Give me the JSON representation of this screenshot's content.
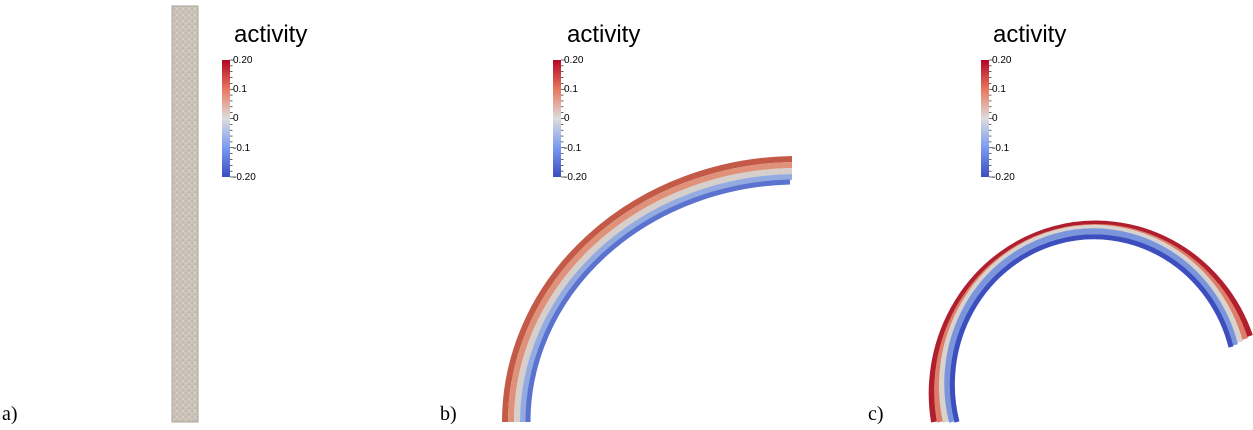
{
  "panels": [
    {
      "label": "a)",
      "colorbar": {
        "title": "activity",
        "ticks": [
          "0.20",
          "0.1",
          "0",
          "-0.1",
          "-0.20"
        ]
      }
    },
    {
      "label": "b)",
      "colorbar": {
        "title": "activity",
        "ticks": [
          "0.20",
          "0.1",
          "0",
          "-0.1",
          "-0.20"
        ]
      }
    },
    {
      "label": "c)",
      "colorbar": {
        "title": "activity",
        "ticks": [
          "0.20",
          "0.1",
          "0",
          "-0.1",
          "-0.20"
        ]
      }
    }
  ],
  "colormap": {
    "high": "#b40426",
    "mid": "#dddddd",
    "low": "#3b4cc0"
  },
  "undeformed_strip_color": "#c8bfb4"
}
